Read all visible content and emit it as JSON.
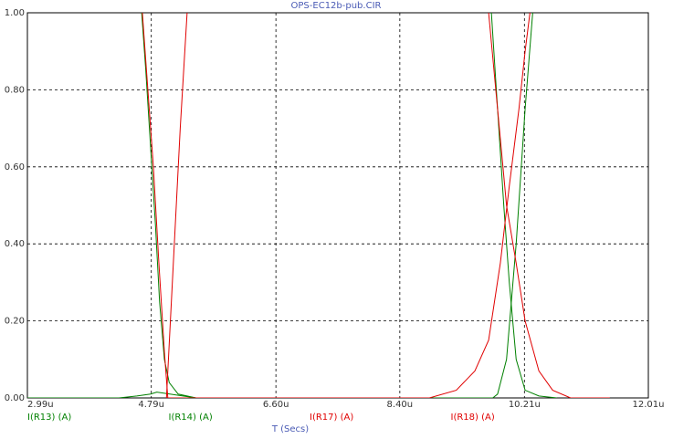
{
  "chart_data": {
    "type": "line",
    "title": "OPS-EC12b-pub.CIR",
    "x_label": "T (Secs)",
    "xlim": [
      2.99,
      12.01
    ],
    "xticks": [
      {
        "value": 2.99,
        "label": "2.99u"
      },
      {
        "value": 4.79,
        "label": "4.79u"
      },
      {
        "value": 6.6,
        "label": "6.60u"
      },
      {
        "value": 8.4,
        "label": "8.40u"
      },
      {
        "value": 10.21,
        "label": "10.21u"
      },
      {
        "value": 12.01,
        "label": "12.01u"
      }
    ],
    "ylim": [
      0,
      1
    ],
    "yticks": [
      {
        "value": 0,
        "label": "0.00"
      },
      {
        "value": 0.2,
        "label": "0.20"
      },
      {
        "value": 0.4,
        "label": "0.40"
      },
      {
        "value": 0.6,
        "label": "0.60"
      },
      {
        "value": 0.8,
        "label": "0.80"
      },
      {
        "value": 1,
        "label": "1.00"
      }
    ],
    "grid": true,
    "series": [
      {
        "name": "I(R13) (A)",
        "color": "#008000",
        "x": [
          4.65,
          4.71,
          4.78,
          4.85,
          4.91,
          4.98,
          5.05,
          5.18,
          5.44,
          9.22,
          9.73,
          9.82,
          9.91,
          9.99,
          10.09,
          10.22,
          10.42,
          10.68
        ],
        "values": [
          1,
          0.85,
          0.65,
          0.45,
          0.25,
          0.1,
          0.04,
          0.01,
          0,
          null,
          1,
          0.75,
          0.5,
          0.3,
          0.1,
          0.02,
          0.005,
          0
        ]
      },
      {
        "name": "I(R14) (A)",
        "color": "#008000",
        "x": [
          2.99,
          4.32,
          4.58,
          4.78,
          4.87,
          5.44,
          9.75,
          9.82,
          9.95,
          10.09,
          10.22,
          10.33
        ],
        "values": [
          0,
          0,
          0.005,
          0.01,
          0.015,
          0,
          0,
          0.01,
          0.1,
          0.4,
          0.75,
          1
        ]
      },
      {
        "name": "I(R17) (A)",
        "color": "#e00000",
        "x": [
          4.66,
          4.74,
          4.82,
          4.9,
          4.98,
          5.03,
          8.83,
          9.22,
          9.49,
          9.69,
          9.86,
          9.99,
          10.13,
          10.22,
          10.29
        ],
        "values": [
          1,
          0.8,
          0.6,
          0.35,
          0.12,
          0,
          0,
          0.02,
          0.07,
          0.15,
          0.35,
          0.55,
          0.75,
          0.9,
          1
        ]
      },
      {
        "name": "I(R18) (A)",
        "color": "#e00000",
        "x": [
          5.01,
          5.11,
          5.21,
          5.31,
          9.22,
          9.69,
          9.82,
          9.95,
          10.09,
          10.22,
          10.42,
          10.62,
          10.88,
          11.45
        ],
        "values": [
          0,
          0.35,
          0.7,
          1,
          null,
          1,
          0.75,
          0.5,
          0.35,
          0.2,
          0.07,
          0.02,
          0,
          0
        ]
      }
    ]
  }
}
